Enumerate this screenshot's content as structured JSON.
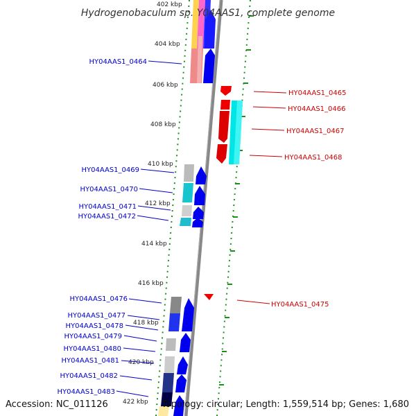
{
  "title": "Hydrogenobaculum sp. Y04AAS1, complete genome",
  "footer": {
    "accession": "Accession: NC_011126",
    "topology": "Topology: circular; Length: 1,559,514 bp; Genes: 1,680"
  },
  "colors": {
    "forward_label": "#0000cc",
    "reverse_label": "#cc0000",
    "backbone": "#888888",
    "tick_dots": "#1a8f1a"
  },
  "kbp_ticks": [
    "402 kbp",
    "404 kbp",
    "406 kbp",
    "408 kbp",
    "410 kbp",
    "412 kbp",
    "414 kbp",
    "416 kbp",
    "418 kbp",
    "420 kbp",
    "422 kbp"
  ],
  "genes": [
    {
      "label": "HY04AAS1_0464",
      "strand": "forward"
    },
    {
      "label": "HY04AAS1_0465",
      "strand": "reverse"
    },
    {
      "label": "HY04AAS1_0466",
      "strand": "reverse"
    },
    {
      "label": "HY04AAS1_0467",
      "strand": "reverse"
    },
    {
      "label": "HY04AAS1_0468",
      "strand": "reverse"
    },
    {
      "label": "HY04AAS1_0469",
      "strand": "forward"
    },
    {
      "label": "HY04AAS1_0470",
      "strand": "forward"
    },
    {
      "label": "HY04AAS1_0471",
      "strand": "forward"
    },
    {
      "label": "HY04AAS1_0472",
      "strand": "forward"
    },
    {
      "label": "HY04AAS1_0475",
      "strand": "reverse"
    },
    {
      "label": "HY04AAS1_0476",
      "strand": "forward"
    },
    {
      "label": "HY04AAS1_0477",
      "strand": "forward"
    },
    {
      "label": "HY04AAS1_0478",
      "strand": "forward"
    },
    {
      "label": "HY04AAS1_0479",
      "strand": "forward"
    },
    {
      "label": "HY04AAS1_0480",
      "strand": "forward"
    },
    {
      "label": "HY04AAS1_0481",
      "strand": "forward"
    },
    {
      "label": "HY04AAS1_0482",
      "strand": "forward"
    },
    {
      "label": "HY04AAS1_0483",
      "strand": "forward"
    }
  ]
}
